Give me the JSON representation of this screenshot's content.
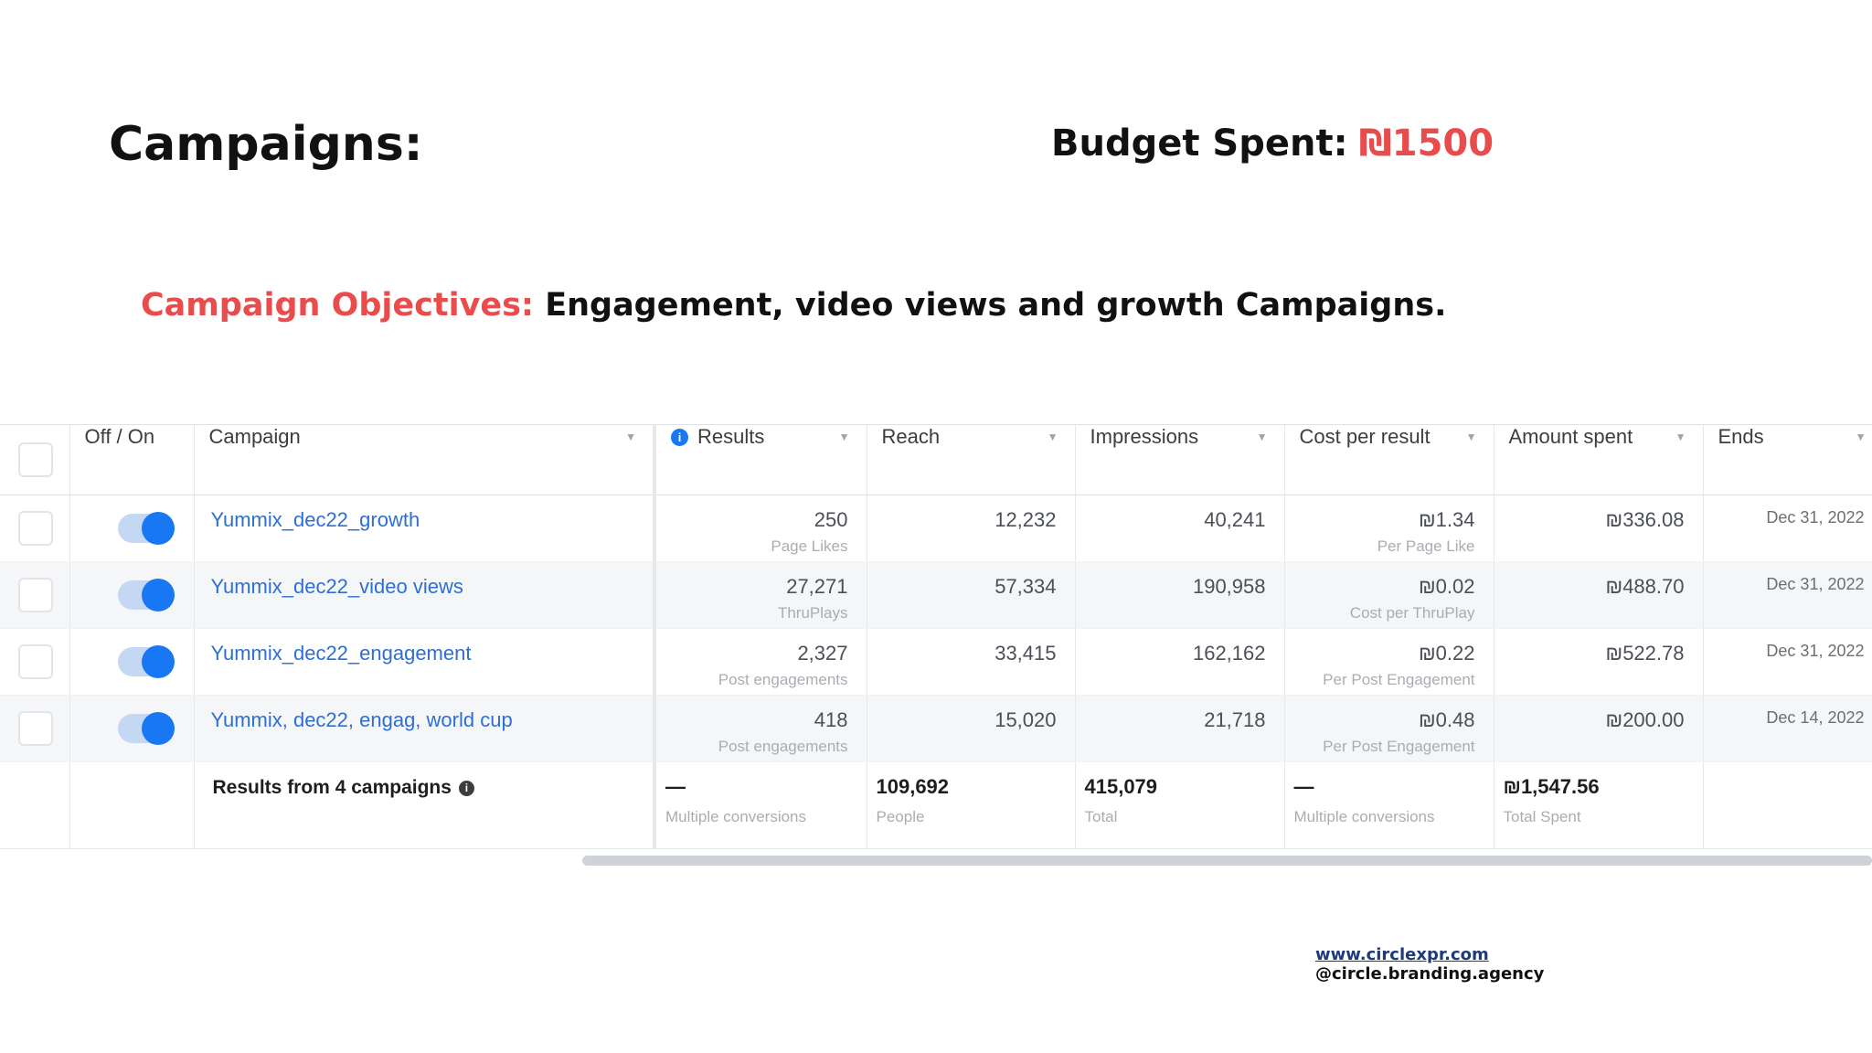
{
  "slide": {
    "title": "Campaigns:",
    "budget_label": "Budget Spent:",
    "budget_value": "₪1500",
    "objectives_label": "Campaign Objectives:",
    "objectives_text": "Engagement, video views and growth Campaigns."
  },
  "table": {
    "headers": {
      "toggle": "Off / On",
      "campaign": "Campaign",
      "results": "Results",
      "reach": "Reach",
      "impressions": "Impressions",
      "cost_per_result": "Cost per result",
      "amount_spent": "Amount spent",
      "ends": "Ends"
    },
    "rows": [
      {
        "name": "Yummix_dec22_growth",
        "results": "250",
        "results_sub": "Page Likes",
        "reach": "12,232",
        "impressions": "40,241",
        "cost": "₪1.34",
        "cost_sub": "Per Page Like",
        "spent": "₪336.08",
        "ends": "Dec 31, 2022",
        "on": true
      },
      {
        "name": "Yummix_dec22_video views",
        "results": "27,271",
        "results_sub": "ThruPlays",
        "reach": "57,334",
        "impressions": "190,958",
        "cost": "₪0.02",
        "cost_sub": "Cost per ThruPlay",
        "spent": "₪488.70",
        "ends": "Dec 31, 2022",
        "on": true
      },
      {
        "name": "Yummix_dec22_engagement",
        "results": "2,327",
        "results_sub": "Post engagements",
        "reach": "33,415",
        "impressions": "162,162",
        "cost": "₪0.22",
        "cost_sub": "Per Post Engagement",
        "spent": "₪522.78",
        "ends": "Dec 31, 2022",
        "on": true
      },
      {
        "name": "Yummix, dec22, engag, world cup",
        "results": "418",
        "results_sub": "Post engagements",
        "reach": "15,020",
        "impressions": "21,718",
        "cost": "₪0.48",
        "cost_sub": "Per Post Engagement",
        "spent": "₪200.00",
        "ends": "Dec 14, 2022",
        "on": true
      }
    ],
    "summary": {
      "label": "Results from 4 campaigns",
      "results": "—",
      "results_sub": "Multiple conversions",
      "reach": "109,692",
      "reach_sub": "People",
      "impressions": "415,079",
      "impressions_sub": "Total",
      "cost": "—",
      "cost_sub": "Multiple conversions",
      "spent": "₪1,547.56",
      "spent_sub": "Total Spent"
    }
  },
  "footer": {
    "website": "www.circlexpr.com",
    "handle": "@circle.branding.agency"
  },
  "colors": {
    "accent_red": "#e84c4c",
    "link_blue": "#2e6fd1",
    "toggle_blue": "#1877f2"
  },
  "icons": {
    "info": "info-icon",
    "dropdown": "chevron-down-icon"
  }
}
